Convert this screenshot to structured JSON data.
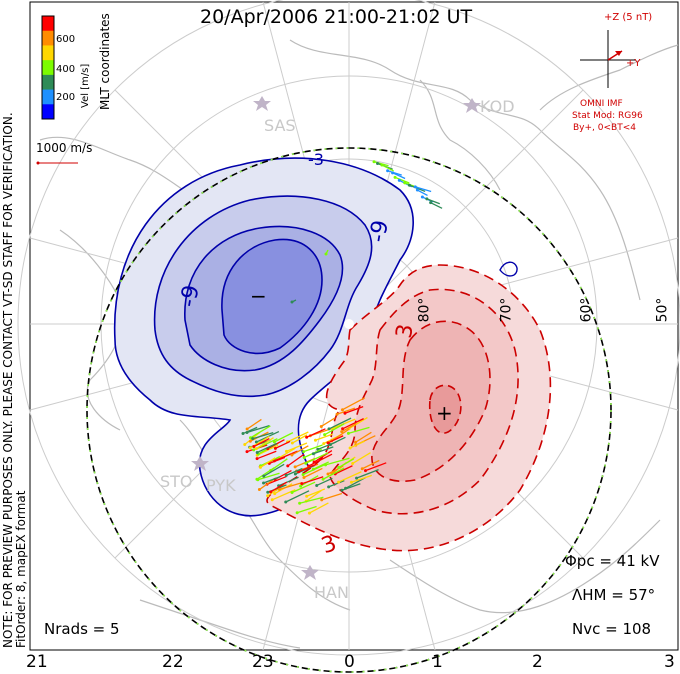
{
  "title": "20/Apr/2006 21:00-21:02 UT",
  "colorbar": {
    "label": "Vel [m/s]",
    "ticks": [
      "600",
      "400",
      "200"
    ],
    "colors": [
      "#ff0000",
      "#ff8c00",
      "#ffd700",
      "#7cfc00",
      "#2e8b57",
      "#1e90ff",
      "#0000ff"
    ]
  },
  "coordinates_label": "MLT coordinates",
  "reference_vector": "1000 m/s",
  "note_lines": [
    "NOTE: FOR PREVIEW PURPOSES ONLY. PLEASE CONTACT VT-SD STAFF FOR VERIFICATION.",
    "FitOrder: 8, mapEX format"
  ],
  "imf": {
    "z_label": "+Z (5 nT)",
    "y_label": "+Y",
    "source": "OMNI IMF",
    "model": "Stat Mod: RG96",
    "condition": "By+, 0<BT<4"
  },
  "stations": [
    "SAS",
    "KOD",
    "STO",
    "PYK",
    "HAN"
  ],
  "latitude_labels": [
    "80°",
    "70°",
    "60°",
    "50°"
  ],
  "contour_labels": {
    "neg": [
      "-9",
      "-9",
      "-3"
    ],
    "pos": [
      "3",
      "3"
    ]
  },
  "extrema": {
    "min_symbol": "−",
    "max_symbol": "+"
  },
  "stats": {
    "pcp": "Φpc = 41 kV",
    "hm": "ΛHM = 57°",
    "nvc": "Nvc = 108",
    "nrads": "Nrads = 5"
  },
  "mlt_labels": [
    "21",
    "22",
    "23",
    "0",
    "1",
    "2",
    "3"
  ],
  "colors": {
    "negative": "#0000aa",
    "positive": "#cc0000",
    "boundary_green": "#90ee50"
  }
}
